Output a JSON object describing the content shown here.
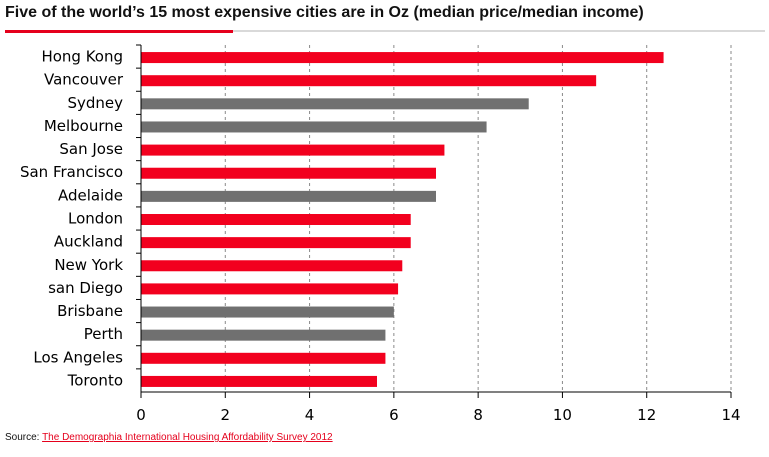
{
  "title": "Five of the world’s 15 most expensive cities are in Oz (median price/median income)",
  "source": {
    "label": "Source: ",
    "link_text": "The Demographia International Housing Affordability Survey 2012"
  },
  "colors": {
    "highlight": "#f2001e",
    "australia": "#707070",
    "gridline": "#8a8a8a",
    "axis": "#000000",
    "accent": "#e5001c"
  },
  "chart_data": {
    "type": "bar",
    "orientation": "horizontal",
    "title": "Five of the world’s 15 most expensive cities are in Oz (median price/median income)",
    "xlabel": "",
    "ylabel": "",
    "xlim": [
      0,
      14
    ],
    "xticks": [
      0,
      2,
      4,
      6,
      8,
      10,
      12,
      14
    ],
    "grid": "vertical dashed",
    "legend": "none",
    "categories": [
      "Hong Kong",
      "Vancouver",
      "Sydney",
      "Melbourne",
      "San Jose",
      "San Francisco",
      "Adelaide",
      "London",
      "Auckland",
      "New York",
      "san Diego",
      "Brisbane",
      "Perth",
      "Los Angeles",
      "Toronto"
    ],
    "values": [
      12.4,
      10.8,
      9.2,
      8.2,
      7.2,
      7.0,
      7.0,
      6.4,
      6.4,
      6.2,
      6.1,
      6.0,
      5.8,
      5.8,
      5.6
    ],
    "australian": [
      false,
      false,
      true,
      true,
      false,
      false,
      true,
      false,
      false,
      false,
      false,
      true,
      true,
      false,
      false
    ]
  }
}
